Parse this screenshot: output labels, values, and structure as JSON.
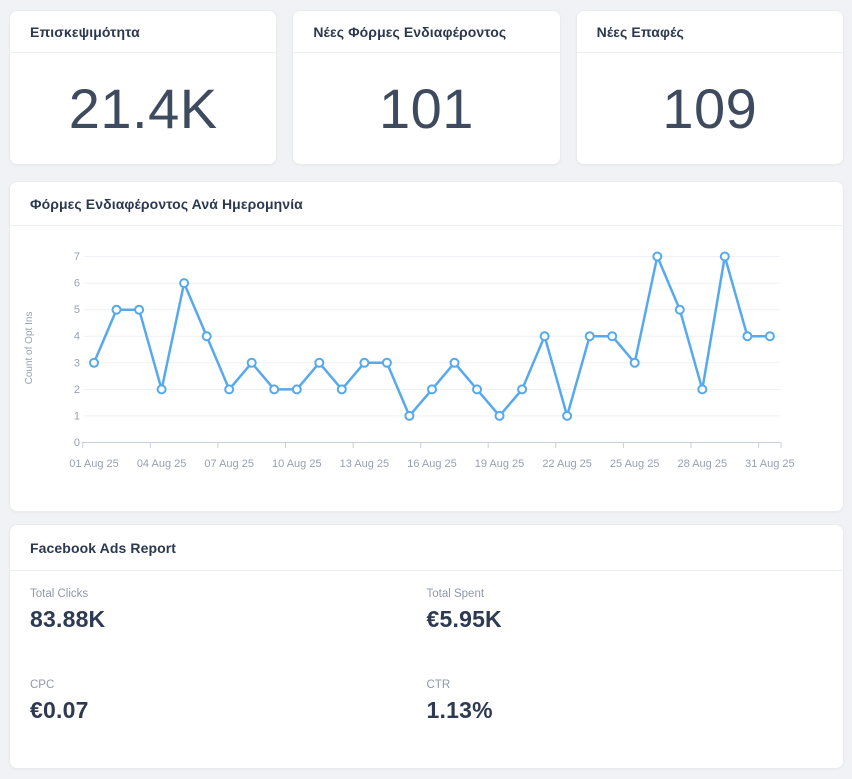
{
  "kpi_cards": [
    {
      "title": "Επισκεψιμότητα",
      "value": "21.4K"
    },
    {
      "title": "Νέες Φόρμες Ενδιαφέροντος",
      "value": "101"
    },
    {
      "title": "Νέες Επαφές",
      "value": "109"
    }
  ],
  "chart_card": {
    "title": "Φόρμες Ενδιαφέροντος Ανά Ημερομηνία"
  },
  "chart_data": {
    "type": "line",
    "title": "Φόρμες Ενδιαφέροντος Ανά Ημερομηνία",
    "ylabel": "Count of Opt Ins",
    "xlabel": "",
    "ylim": [
      0,
      7
    ],
    "yticks": [
      0,
      1,
      2,
      3,
      4,
      5,
      6,
      7
    ],
    "grid": true,
    "legend": false,
    "line_color": "#57A9EE",
    "marker_fill": "#FFFFFF",
    "x": [
      "01 Aug 25",
      "02 Aug 25",
      "03 Aug 25",
      "04 Aug 25",
      "05 Aug 25",
      "06 Aug 25",
      "07 Aug 25",
      "08 Aug 25",
      "09 Aug 25",
      "10 Aug 25",
      "11 Aug 25",
      "12 Aug 25",
      "13 Aug 25",
      "14 Aug 25",
      "15 Aug 25",
      "16 Aug 25",
      "17 Aug 25",
      "18 Aug 25",
      "19 Aug 25",
      "20 Aug 25",
      "21 Aug 25",
      "22 Aug 25",
      "23 Aug 25",
      "24 Aug 25",
      "25 Aug 25",
      "26 Aug 25",
      "27 Aug 25",
      "28 Aug 25",
      "29 Aug 25",
      "30 Aug 25",
      "31 Aug 25"
    ],
    "values": [
      3,
      5,
      5,
      2,
      6,
      4,
      2,
      3,
      2,
      2,
      3,
      2,
      3,
      3,
      1,
      2,
      3,
      2,
      1,
      2,
      4,
      1,
      4,
      4,
      3,
      7,
      5,
      2,
      7,
      4,
      4
    ],
    "x_tick_labels": [
      "01 Aug 25",
      "04 Aug 25",
      "07 Aug 25",
      "10 Aug 25",
      "13 Aug 25",
      "16 Aug 25",
      "19 Aug 25",
      "22 Aug 25",
      "25 Aug 25",
      "28 Aug 25",
      "31 Aug 25"
    ],
    "x_tick_step_days": 3
  },
  "fb_card": {
    "title": "Facebook Ads Report",
    "metrics": [
      {
        "label": "Total Clicks",
        "value": "83.88K"
      },
      {
        "label": "Total Spent",
        "value": "€5.95K"
      },
      {
        "label": "CPC",
        "value": "€0.07"
      },
      {
        "label": "CTR",
        "value": "1.13%"
      }
    ]
  },
  "colors": {
    "page_background": "#F0F2F5",
    "card_background": "#FFFFFF",
    "card_border": "#E9EBEF",
    "title_text": "#2B3850",
    "kpi_value_text": "#3E4A5E",
    "metric_label_text": "#8F98A8",
    "metric_value_text": "#2E3A52",
    "chart_line": "#57A9EE",
    "axis_text": "#98A1B1",
    "gridline": "#EFF1F6",
    "axis_line": "#C9CFD8"
  }
}
